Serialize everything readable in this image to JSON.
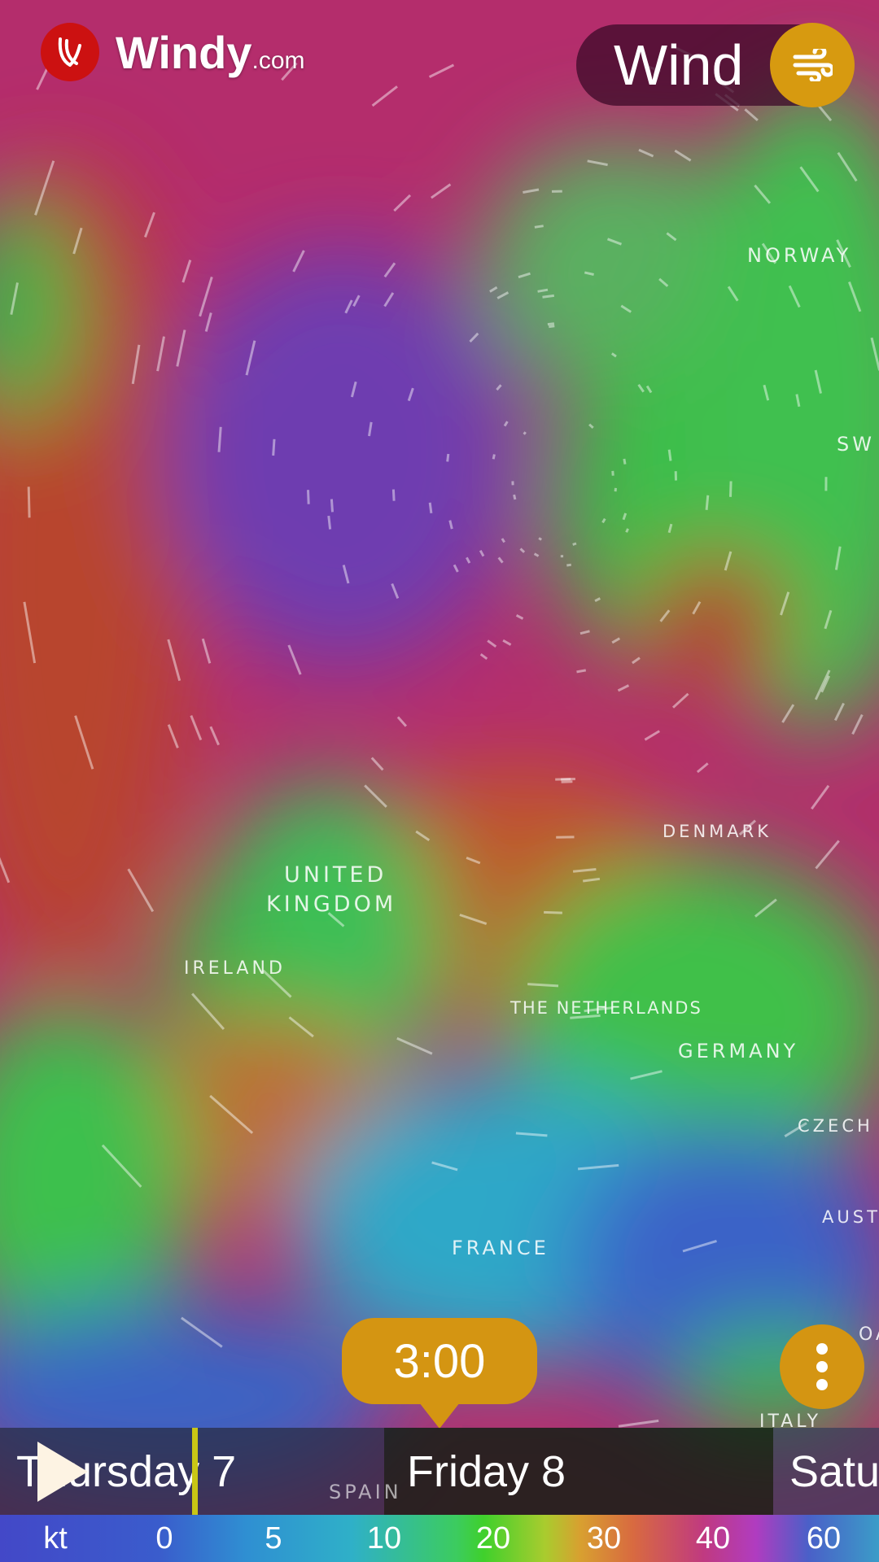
{
  "brand": {
    "name": "Windy",
    "suffix": ".com"
  },
  "layer": {
    "label": "Wind",
    "icon": "wind-icon"
  },
  "map_labels": [
    {
      "text": "NORWAY"
    },
    {
      "text": "SW"
    },
    {
      "text": "DENMARK"
    },
    {
      "text": "UNITED"
    },
    {
      "text": "KINGDOM"
    },
    {
      "text": "IRELAND"
    },
    {
      "text": "THE NETHERLANDS"
    },
    {
      "text": "GERMANY"
    },
    {
      "text": "CZECH R"
    },
    {
      "text": "AUSTR"
    },
    {
      "text": "FRANCE"
    },
    {
      "text": "SPAIN"
    },
    {
      "text": "ITALY"
    },
    {
      "text": "OA"
    }
  ],
  "time": {
    "current": "3:00"
  },
  "timeline": {
    "days": [
      "Thursday 7",
      "Friday 8",
      "Satu"
    ],
    "progress_fraction": 0.5
  },
  "legend": {
    "unit": "kt",
    "ticks": [
      "0",
      "5",
      "10",
      "20",
      "30",
      "40",
      "60"
    ]
  },
  "colors": {
    "accent": "#d49512",
    "logo": "#cc1111"
  }
}
